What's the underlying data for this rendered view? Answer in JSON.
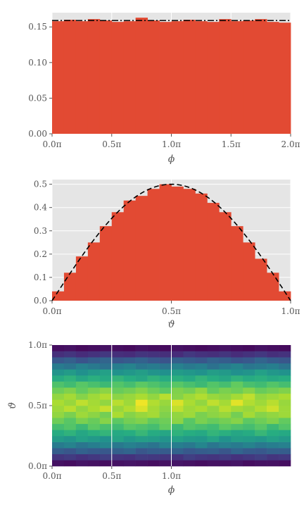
{
  "chart_data": [
    {
      "type": "bar",
      "title": "",
      "xlabel": "ϕ",
      "ylabel": "",
      "xlim": [
        0,
        2
      ],
      "ylim": [
        0,
        0.17
      ],
      "grid": true,
      "colors": {
        "bars": "#E24A33",
        "background": "#E5E5E5",
        "reference": "#000000"
      },
      "xtick_labels": [
        {
          "value": 0.0,
          "label": "0.0π"
        },
        {
          "value": 0.5,
          "label": "0.5π"
        },
        {
          "value": 1.0,
          "label": "1.0π"
        },
        {
          "value": 1.5,
          "label": "1.5π"
        },
        {
          "value": 2.0,
          "label": "2.0π"
        }
      ],
      "ytick_labels": [
        {
          "value": 0.0,
          "label": "0.00"
        },
        {
          "value": 0.05,
          "label": "0.05"
        },
        {
          "value": 0.1,
          "label": "0.10"
        },
        {
          "value": 0.15,
          "label": "0.15"
        }
      ],
      "bin_edges": [
        0,
        0.1,
        0.2,
        0.3,
        0.4,
        0.5,
        0.6,
        0.7,
        0.8,
        0.9,
        1.0,
        1.1,
        1.2,
        1.3,
        1.4,
        1.5,
        1.6,
        1.7,
        1.8,
        1.9,
        2.0
      ],
      "values": [
        0.158,
        0.16,
        0.158,
        0.161,
        0.159,
        0.157,
        0.158,
        0.163,
        0.159,
        0.157,
        0.158,
        0.16,
        0.158,
        0.157,
        0.161,
        0.158,
        0.159,
        0.161,
        0.157,
        0.156
      ],
      "reference_curve": {
        "style": "dashdot",
        "y": 0.159
      }
    },
    {
      "type": "bar",
      "title": "",
      "xlabel": "ϑ",
      "ylabel": "",
      "xlim": [
        0,
        1
      ],
      "ylim": [
        0,
        0.52
      ],
      "grid": true,
      "colors": {
        "bars": "#E24A33",
        "background": "#E5E5E5",
        "reference": "#000000"
      },
      "xtick_labels": [
        {
          "value": 0.0,
          "label": "0.0π"
        },
        {
          "value": 0.5,
          "label": "0.5π"
        },
        {
          "value": 1.0,
          "label": "1.0π"
        }
      ],
      "ytick_labels": [
        {
          "value": 0.0,
          "label": "0.0"
        },
        {
          "value": 0.1,
          "label": "0.1"
        },
        {
          "value": 0.2,
          "label": "0.2"
        },
        {
          "value": 0.3,
          "label": "0.3"
        },
        {
          "value": 0.4,
          "label": "0.4"
        },
        {
          "value": 0.5,
          "label": "0.5"
        }
      ],
      "bin_edges": [
        0,
        0.05,
        0.1,
        0.15,
        0.2,
        0.25,
        0.3,
        0.35,
        0.4,
        0.45,
        0.5,
        0.55,
        0.6,
        0.65,
        0.7,
        0.75,
        0.8,
        0.85,
        0.9,
        0.95,
        1.0
      ],
      "values": [
        0.04,
        0.12,
        0.19,
        0.25,
        0.32,
        0.38,
        0.43,
        0.45,
        0.48,
        0.5,
        0.49,
        0.48,
        0.46,
        0.42,
        0.38,
        0.32,
        0.25,
        0.18,
        0.12,
        0.04
      ],
      "reference_curve": {
        "style": "dashed",
        "function": "0.5*sin(pi*x)"
      }
    },
    {
      "type": "heatmap",
      "title": "",
      "xlabel": "ϕ",
      "ylabel": "ϑ",
      "xlim": [
        0,
        2
      ],
      "ylim": [
        0,
        1
      ],
      "grid": true,
      "colormap": "viridis",
      "xtick_labels": [
        {
          "value": 0.0,
          "label": "0.0π"
        },
        {
          "value": 0.5,
          "label": "0.5π"
        },
        {
          "value": 1.0,
          "label": "1.0π"
        }
      ],
      "ytick_labels": [
        {
          "value": 0.0,
          "label": "0.0π"
        },
        {
          "value": 0.5,
          "label": "0.5π"
        },
        {
          "value": 1.0,
          "label": "1.0π"
        }
      ],
      "grid_shape": {
        "rows": 20,
        "cols": 20
      },
      "description": "row 0 = bottom (ϑ=0); intensity peaks near ϑ=0.5π",
      "values": [
        [
          0.05,
          0.04,
          0.06,
          0.05,
          0.04,
          0.05,
          0.06,
          0.05,
          0.04,
          0.05,
          0.06,
          0.05,
          0.04,
          0.05,
          0.05,
          0.06,
          0.04,
          0.05,
          0.05,
          0.04
        ],
        [
          0.16,
          0.18,
          0.15,
          0.17,
          0.19,
          0.16,
          0.15,
          0.18,
          0.17,
          0.16,
          0.15,
          0.19,
          0.17,
          0.16,
          0.18,
          0.15,
          0.17,
          0.19,
          0.16,
          0.17
        ],
        [
          0.3,
          0.27,
          0.32,
          0.29,
          0.28,
          0.31,
          0.33,
          0.27,
          0.3,
          0.29,
          0.32,
          0.28,
          0.3,
          0.31,
          0.27,
          0.33,
          0.29,
          0.28,
          0.31,
          0.3
        ],
        [
          0.42,
          0.45,
          0.4,
          0.43,
          0.46,
          0.41,
          0.44,
          0.42,
          0.39,
          0.45,
          0.43,
          0.41,
          0.46,
          0.4,
          0.44,
          0.42,
          0.45,
          0.41,
          0.43,
          0.44
        ],
        [
          0.55,
          0.52,
          0.57,
          0.54,
          0.51,
          0.58,
          0.53,
          0.56,
          0.55,
          0.52,
          0.57,
          0.54,
          0.53,
          0.58,
          0.51,
          0.56,
          0.55,
          0.53,
          0.57,
          0.54
        ],
        [
          0.62,
          0.65,
          0.6,
          0.64,
          0.66,
          0.61,
          0.63,
          0.67,
          0.62,
          0.6,
          0.65,
          0.63,
          0.61,
          0.66,
          0.64,
          0.6,
          0.62,
          0.67,
          0.63,
          0.61
        ],
        [
          0.7,
          0.73,
          0.68,
          0.75,
          0.71,
          0.69,
          0.74,
          0.72,
          0.7,
          0.76,
          0.68,
          0.73,
          0.71,
          0.69,
          0.75,
          0.72,
          0.7,
          0.74,
          0.68,
          0.73
        ],
        [
          0.78,
          0.74,
          0.8,
          0.77,
          0.82,
          0.75,
          0.79,
          0.81,
          0.76,
          0.78,
          0.83,
          0.74,
          0.8,
          0.77,
          0.79,
          0.82,
          0.75,
          0.78,
          0.81,
          0.76
        ],
        [
          0.84,
          0.8,
          0.86,
          0.83,
          0.79,
          0.88,
          0.82,
          0.85,
          0.87,
          0.81,
          0.84,
          0.86,
          0.8,
          0.83,
          0.85,
          0.79,
          0.87,
          0.82,
          0.84,
          0.86
        ],
        [
          0.86,
          0.9,
          0.84,
          0.88,
          0.92,
          0.85,
          0.89,
          0.95,
          0.87,
          0.83,
          0.91,
          0.86,
          0.88,
          0.84,
          0.9,
          0.87,
          0.85,
          0.89,
          0.93,
          0.86
        ],
        [
          0.88,
          0.85,
          0.91,
          0.87,
          0.84,
          0.9,
          0.86,
          0.98,
          0.89,
          0.85,
          0.95,
          0.88,
          0.84,
          0.91,
          0.87,
          0.96,
          0.89,
          0.86,
          0.9,
          0.85
        ],
        [
          0.84,
          0.87,
          0.82,
          0.86,
          0.89,
          0.83,
          0.85,
          0.88,
          0.84,
          0.9,
          0.82,
          0.86,
          0.89,
          0.85,
          0.83,
          0.87,
          0.91,
          0.84,
          0.86,
          0.88
        ],
        [
          0.78,
          0.81,
          0.76,
          0.8,
          0.83,
          0.77,
          0.79,
          0.82,
          0.78,
          0.75,
          0.81,
          0.79,
          0.84,
          0.76,
          0.8,
          0.78,
          0.82,
          0.77,
          0.79,
          0.81
        ],
        [
          0.72,
          0.69,
          0.74,
          0.71,
          0.68,
          0.73,
          0.7,
          0.75,
          0.72,
          0.69,
          0.74,
          0.71,
          0.68,
          0.73,
          0.7,
          0.76,
          0.71,
          0.69,
          0.73,
          0.7
        ],
        [
          0.62,
          0.65,
          0.6,
          0.64,
          0.61,
          0.66,
          0.63,
          0.6,
          0.65,
          0.62,
          0.64,
          0.61,
          0.66,
          0.63,
          0.6,
          0.65,
          0.62,
          0.64,
          0.61,
          0.63
        ],
        [
          0.52,
          0.55,
          0.5,
          0.54,
          0.57,
          0.51,
          0.53,
          0.56,
          0.52,
          0.5,
          0.55,
          0.53,
          0.51,
          0.56,
          0.54,
          0.5,
          0.52,
          0.57,
          0.53,
          0.51
        ],
        [
          0.42,
          0.39,
          0.44,
          0.41,
          0.38,
          0.43,
          0.45,
          0.4,
          0.42,
          0.39,
          0.44,
          0.41,
          0.43,
          0.38,
          0.42,
          0.45,
          0.4,
          0.41,
          0.43,
          0.39
        ],
        [
          0.28,
          0.31,
          0.26,
          0.3,
          0.33,
          0.27,
          0.29,
          0.32,
          0.28,
          0.26,
          0.31,
          0.29,
          0.27,
          0.32,
          0.3,
          0.26,
          0.28,
          0.33,
          0.29,
          0.27
        ],
        [
          0.14,
          0.16,
          0.13,
          0.15,
          0.17,
          0.14,
          0.13,
          0.16,
          0.15,
          0.14,
          0.13,
          0.17,
          0.15,
          0.14,
          0.16,
          0.13,
          0.15,
          0.17,
          0.14,
          0.15
        ],
        [
          0.04,
          0.05,
          0.03,
          0.04,
          0.05,
          0.04,
          0.03,
          0.05,
          0.04,
          0.03,
          0.05,
          0.04,
          0.03,
          0.04,
          0.05,
          0.04,
          0.03,
          0.05,
          0.04,
          0.03
        ]
      ]
    }
  ]
}
